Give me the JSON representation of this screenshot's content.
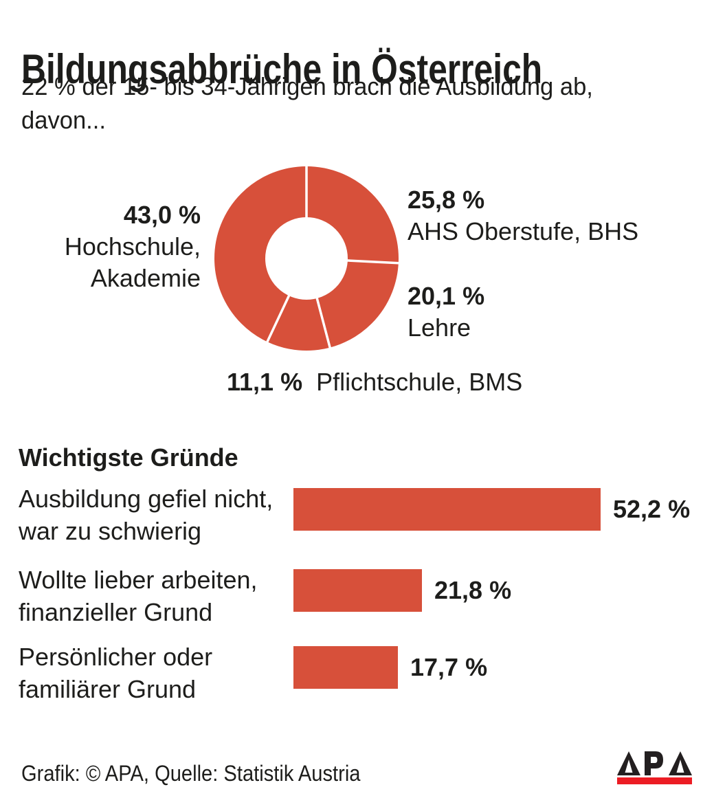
{
  "title": "Bildungsabbrüche in Österreich",
  "subtitle_lines": [
    "22 % der 15- bis 34-Jährigen brach die Ausbildung ab,",
    "davon..."
  ],
  "colors": {
    "chart_red": "#d7503a",
    "logo_red": "#ec1c24",
    "logo_black": "#231f20",
    "text": "#1d1d1b"
  },
  "chart_data": [
    {
      "type": "pie",
      "subtype": "donut",
      "start_angle_deg": 0,
      "direction": "clockwise",
      "color": "#d7503a",
      "separator_color": "#ffffff",
      "segments": [
        {
          "value": 25.8,
          "display": "25,8 %",
          "label": "AHS Oberstufe, BHS",
          "label_lines": [
            "AHS Oberstufe, BHS"
          ]
        },
        {
          "value": 20.1,
          "display": "20,1 %",
          "label": "Lehre",
          "label_lines": [
            "Lehre"
          ]
        },
        {
          "value": 11.1,
          "display": "11,1 %",
          "label": "Pflichtschule, BMS",
          "label_lines": [
            "Pflichtschule, BMS"
          ]
        },
        {
          "value": 43.0,
          "display": "43,0 %",
          "label": "Hochschule, Akademie",
          "label_lines": [
            "Hochschule,",
            "Akademie"
          ]
        }
      ]
    },
    {
      "type": "bar",
      "orientation": "horizontal",
      "title": "Wichtigste Gründe",
      "color": "#d7503a",
      "categories": [
        "Ausbildung gefiel nicht, war zu schwierig",
        "Wollte lieber arbeiten, finanzieller Grund",
        "Persönlicher oder familiärer Grund"
      ],
      "categories_lines": [
        [
          "Ausbildung gefiel nicht,",
          "war zu schwierig"
        ],
        [
          "Wollte lieber arbeiten,",
          "finanzieller Grund"
        ],
        [
          "Persönlicher oder",
          "familiärer Grund"
        ]
      ],
      "values": [
        52.2,
        21.8,
        17.7
      ],
      "value_labels": [
        "52,2 %",
        "21,8 %",
        "17,7 %"
      ],
      "xlim": [
        0,
        52.2
      ]
    }
  ],
  "footer": {
    "credit": "Grafik: © APA, Quelle: Statistik Austria",
    "logo_text": "APA"
  }
}
